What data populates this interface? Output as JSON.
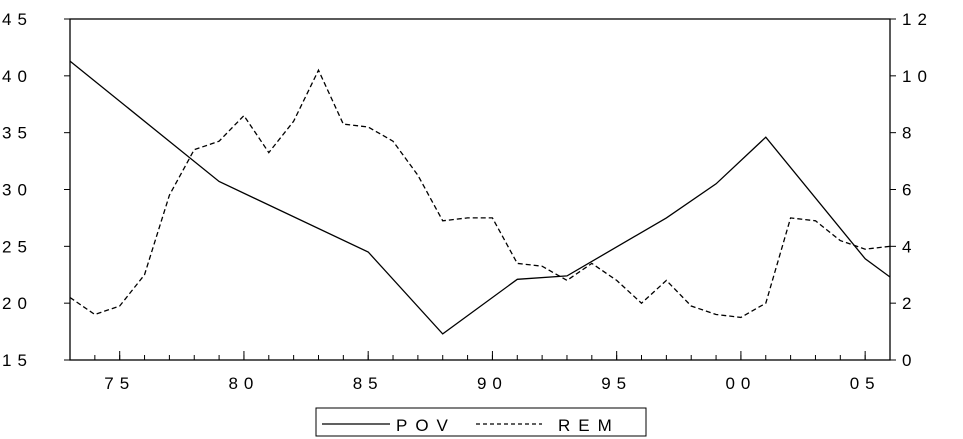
{
  "chart_data": {
    "type": "line",
    "x_range": [
      1973,
      2006
    ],
    "x_tick_values": [
      1975,
      1980,
      1985,
      1990,
      1995,
      2000,
      2005
    ],
    "x_tick_labels": [
      "75",
      "80",
      "85",
      "90",
      "95",
      "00",
      "05"
    ],
    "y_left": {
      "range": [
        15,
        45
      ],
      "ticks": [
        15,
        20,
        25,
        30,
        35,
        40,
        45
      ],
      "tick_labels": [
        "15",
        "20",
        "25",
        "30",
        "35",
        "40",
        "45"
      ]
    },
    "y_right": {
      "range": [
        0,
        12
      ],
      "ticks": [
        0,
        2,
        4,
        6,
        8,
        10,
        12
      ],
      "tick_labels": [
        "0",
        "2",
        "4",
        "6",
        "8",
        "10",
        "12"
      ]
    },
    "grid": false,
    "legend_position": "bottom-center",
    "series": [
      {
        "name": "POV",
        "axis": "left",
        "line_style": "solid",
        "color": "#000000",
        "points": [
          [
            1973,
            41.3
          ],
          [
            1979,
            30.7
          ],
          [
            1985,
            24.5
          ],
          [
            1988,
            17.3
          ],
          [
            1991,
            22.1
          ],
          [
            1993,
            22.4
          ],
          [
            1997,
            27.5
          ],
          [
            1999,
            30.5
          ],
          [
            2001,
            34.6
          ],
          [
            2005,
            23.9
          ],
          [
            2006,
            22.3
          ]
        ]
      },
      {
        "name": "REM",
        "axis": "right",
        "line_style": "dashed",
        "color": "#000000",
        "points": [
          [
            1973,
            2.2
          ],
          [
            1974,
            1.6
          ],
          [
            1975,
            1.9
          ],
          [
            1976,
            3.0
          ],
          [
            1977,
            5.8
          ],
          [
            1978,
            7.4
          ],
          [
            1979,
            7.7
          ],
          [
            1980,
            8.6
          ],
          [
            1981,
            7.3
          ],
          [
            1982,
            8.4
          ],
          [
            1983,
            10.2
          ],
          [
            1984,
            8.3
          ],
          [
            1985,
            8.2
          ],
          [
            1986,
            7.7
          ],
          [
            1987,
            6.5
          ],
          [
            1988,
            4.9
          ],
          [
            1989,
            5.0
          ],
          [
            1990,
            5.0
          ],
          [
            1991,
            3.4
          ],
          [
            1992,
            3.3
          ],
          [
            1993,
            2.8
          ],
          [
            1994,
            3.4
          ],
          [
            1995,
            2.8
          ],
          [
            1996,
            2.0
          ],
          [
            1997,
            2.8
          ],
          [
            1998,
            1.9
          ],
          [
            1999,
            1.6
          ],
          [
            2000,
            1.5
          ],
          [
            2001,
            2.0
          ],
          [
            2002,
            5.0
          ],
          [
            2003,
            4.9
          ],
          [
            2004,
            4.2
          ],
          [
            2005,
            3.9
          ],
          [
            2006,
            4.0
          ]
        ]
      }
    ]
  }
}
